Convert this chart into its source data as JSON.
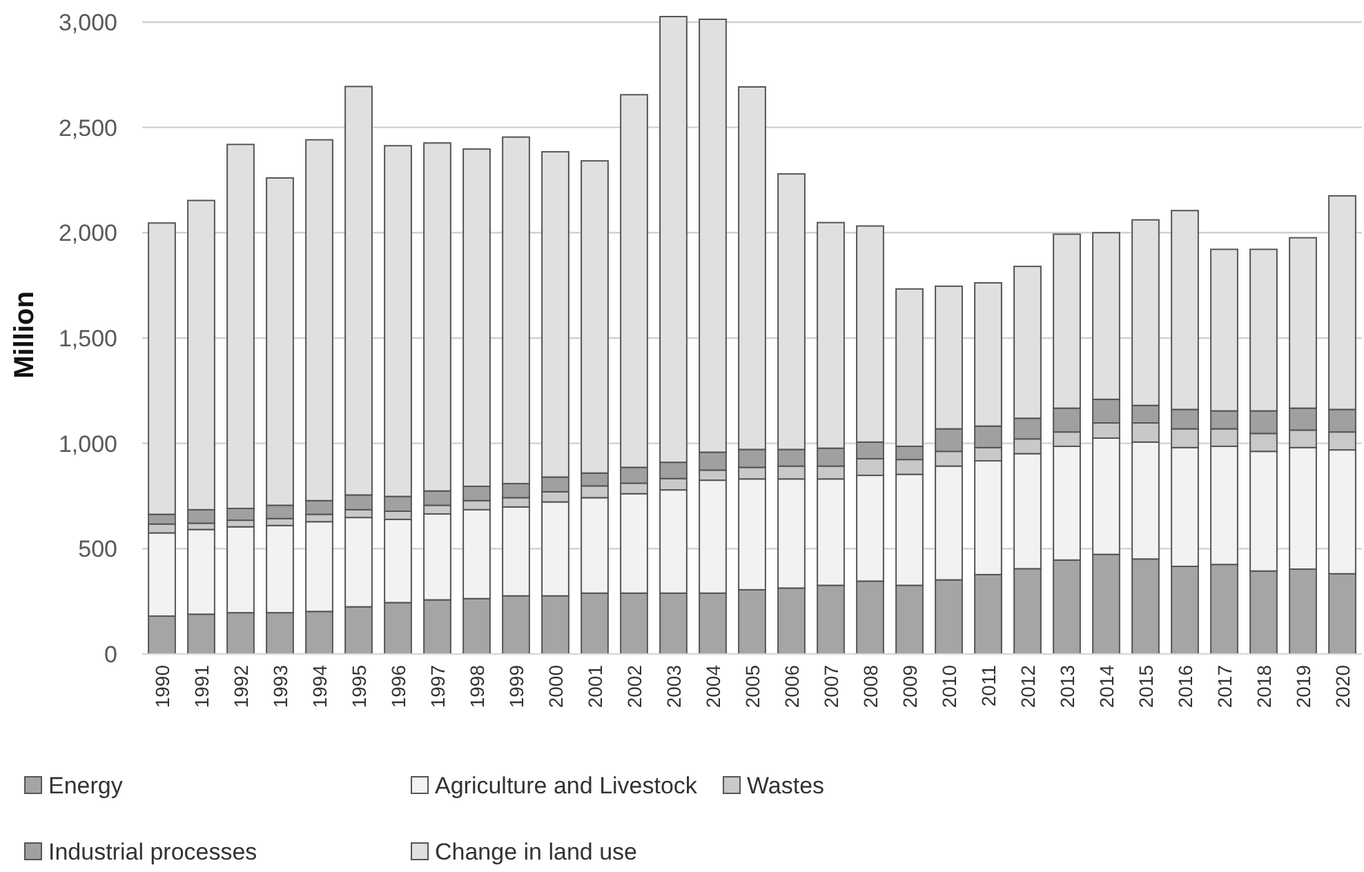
{
  "chart_data": {
    "type": "bar",
    "ylabel": "Million",
    "stacked": true,
    "categories": [
      "1990",
      "1991",
      "1992",
      "1993",
      "1994",
      "1995",
      "1996",
      "1997",
      "1998",
      "1999",
      "2000",
      "2001",
      "2002",
      "2003",
      "2004",
      "2005",
      "2006",
      "2007",
      "2008",
      "2009",
      "2010",
      "2011",
      "2012",
      "2013",
      "2014",
      "2015",
      "2016",
      "2017",
      "2018",
      "2019",
      "2020"
    ],
    "series": [
      {
        "name": "Energy",
        "color": "#a5a5a5",
        "values": [
          180,
          189,
          196,
          196,
          202,
          224,
          244,
          257,
          263,
          276,
          276,
          289,
          289,
          289,
          289,
          305,
          313,
          326,
          346,
          326,
          352,
          377,
          405,
          446,
          473,
          451,
          416,
          425,
          394,
          403,
          381
        ]
      },
      {
        "name": "Agriculture and Livestock",
        "color": "#f2f2f2",
        "values": [
          395,
          402,
          408,
          414,
          426,
          424,
          395,
          408,
          422,
          422,
          446,
          453,
          472,
          490,
          536,
          526,
          518,
          505,
          502,
          527,
          540,
          540,
          546,
          540,
          552,
          555,
          564,
          561,
          568,
          577,
          588
        ]
      },
      {
        "name": "Wastes",
        "color": "#c9c9c9",
        "values": [
          42,
          30,
          31,
          33,
          35,
          37,
          39,
          41,
          43,
          44,
          48,
          56,
          50,
          54,
          48,
          55,
          61,
          61,
          79,
          70,
          70,
          63,
          70,
          68,
          72,
          91,
          89,
          83,
          85,
          83,
          85
        ]
      },
      {
        "name": "Industrial processes",
        "color": "#a0a0a0",
        "values": [
          46,
          64,
          56,
          63,
          65,
          70,
          70,
          68,
          68,
          67,
          70,
          61,
          75,
          77,
          85,
          85,
          79,
          85,
          79,
          63,
          107,
          102,
          98,
          113,
          112,
          83,
          92,
          85,
          107,
          104,
          107
        ]
      },
      {
        "name": "Change in land use",
        "color": "#e0e0e0",
        "values": [
          1383,
          1468,
          1728,
          1554,
          1713,
          1939,
          1665,
          1652,
          1601,
          1645,
          1544,
          1482,
          1769,
          2116,
          2055,
          1721,
          1308,
          1071,
          1026,
          747,
          677,
          680,
          721,
          826,
          791,
          881,
          944,
          767,
          767,
          809,
          1014
        ]
      }
    ],
    "ylim": [
      0,
      3030
    ],
    "yticks": [
      {
        "value": 0,
        "label": "0"
      },
      {
        "value": 500,
        "label": "500"
      },
      {
        "value": 1000,
        "label": "1,000"
      },
      {
        "value": 1500,
        "label": "1,500"
      },
      {
        "value": 2000,
        "label": "2,000"
      },
      {
        "value": 2500,
        "label": "2,500"
      },
      {
        "value": 3000,
        "label": "3,000"
      }
    ],
    "grid": "y",
    "legend": "bottom"
  }
}
